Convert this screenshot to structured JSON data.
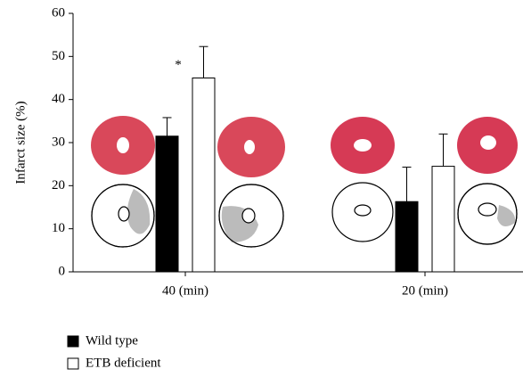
{
  "chart_data": {
    "type": "bar",
    "ylabel": "Infarct size (%)",
    "categories": [
      "40 (min)",
      "20 (min)"
    ],
    "series": [
      {
        "name": "Wild type",
        "color": "#000000",
        "values": [
          31.5,
          16.3
        ],
        "errors": [
          4.3,
          8
        ]
      },
      {
        "name": "ETB deficient",
        "color": "#ffffff",
        "values": [
          45,
          24.5
        ],
        "errors": [
          7.3,
          7.5
        ]
      }
    ],
    "annotation": "*",
    "ylim": [
      0,
      60
    ],
    "yticks": [
      0,
      10,
      20,
      30,
      40,
      50,
      60
    ]
  }
}
